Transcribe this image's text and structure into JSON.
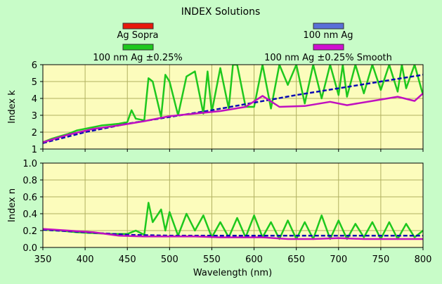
{
  "title": "INDEX Solutions",
  "legend": [
    {
      "label": "Ag Sopra",
      "color": "#e8180c"
    },
    {
      "label": "100 nm Ag",
      "color": "#5a6fd8"
    },
    {
      "label": "100 nm Ag ±0.25%",
      "color": "#1ec81e"
    },
    {
      "label": "100 nm Ag ±0.25% Smooth",
      "color": "#d010d0"
    }
  ],
  "colors": {
    "background": "#c8fcc8",
    "plot_bg": "#fcfcbc",
    "grid": "#b0b060",
    "sopra": "#e8180c",
    "nominal": "#0a0ab4",
    "noisy": "#1ec81e",
    "smooth": "#c010c0"
  },
  "chart_data": [
    {
      "type": "line",
      "title": "INDEX Solutions",
      "xlabel": "",
      "ylabel": "Index k",
      "xlim": [
        350,
        800
      ],
      "ylim": [
        1,
        6
      ],
      "xticks": [
        350,
        400,
        450,
        500,
        550,
        600,
        650,
        700,
        750,
        800
      ],
      "yticks": [
        "1",
        "2",
        "3",
        "4",
        "5",
        "6"
      ],
      "grid": true,
      "series": [
        {
          "name": "100 nm Ag",
          "x": [
            350,
            400,
            450,
            500,
            550,
            600,
            650,
            700,
            750,
            800
          ],
          "y": [
            1.35,
            2.0,
            2.5,
            2.9,
            3.3,
            3.75,
            4.2,
            4.6,
            5.0,
            5.4
          ]
        },
        {
          "name": "100 nm Ag ±0.25%",
          "x": [
            350,
            360,
            370,
            380,
            390,
            400,
            410,
            420,
            430,
            440,
            450,
            455,
            460,
            470,
            475,
            480,
            490,
            495,
            500,
            510,
            520,
            530,
            540,
            545,
            550,
            560,
            570,
            575,
            580,
            590,
            600,
            610,
            620,
            630,
            640,
            650,
            660,
            670,
            680,
            690,
            700,
            705,
            710,
            720,
            730,
            740,
            750,
            760,
            770,
            775,
            780,
            790,
            800
          ],
          "y": [
            1.4,
            1.6,
            1.75,
            1.9,
            2.1,
            2.2,
            2.3,
            2.4,
            2.45,
            2.5,
            2.6,
            3.3,
            2.8,
            2.7,
            5.2,
            5.0,
            2.9,
            5.4,
            5.0,
            3.0,
            5.3,
            5.6,
            3.1,
            5.6,
            3.2,
            5.8,
            3.4,
            6.0,
            6.0,
            3.5,
            3.5,
            6.0,
            3.4,
            6.0,
            4.8,
            6.0,
            3.7,
            6.0,
            4.0,
            6.0,
            4.2,
            6.0,
            4.1,
            6.0,
            4.3,
            6.0,
            4.5,
            6.0,
            4.4,
            6.0,
            4.6,
            6.0,
            4.2
          ]
        },
        {
          "name": "100 nm Ag ±0.25% Smooth",
          "x": [
            350,
            380,
            410,
            440,
            470,
            500,
            530,
            560,
            590,
            610,
            630,
            660,
            690,
            710,
            740,
            770,
            790,
            800
          ],
          "y": [
            1.4,
            1.85,
            2.2,
            2.4,
            2.65,
            2.95,
            3.1,
            3.25,
            3.5,
            4.15,
            3.5,
            3.55,
            3.8,
            3.6,
            3.85,
            4.1,
            3.85,
            4.3
          ]
        }
      ]
    },
    {
      "type": "line",
      "xlabel": "Wavelength (nm)",
      "ylabel": "Index n",
      "xlim": [
        350,
        800
      ],
      "ylim": [
        0,
        1
      ],
      "xticks": [
        350,
        400,
        450,
        500,
        550,
        600,
        650,
        700,
        750,
        800
      ],
      "yticks": [
        "0.0",
        "0.2",
        "0.4",
        "0.6",
        "0.8",
        "1.0"
      ],
      "grid": true,
      "series": [
        {
          "name": "100 nm Ag",
          "x": [
            350,
            400,
            450,
            500,
            550,
            600,
            650,
            700,
            750,
            800
          ],
          "y": [
            0.21,
            0.18,
            0.15,
            0.14,
            0.14,
            0.14,
            0.14,
            0.14,
            0.14,
            0.14
          ]
        },
        {
          "name": "100 nm Ag ±0.25%",
          "x": [
            350,
            370,
            390,
            410,
            430,
            450,
            460,
            470,
            475,
            480,
            490,
            495,
            500,
            510,
            520,
            530,
            540,
            550,
            560,
            570,
            580,
            590,
            600,
            610,
            620,
            630,
            640,
            650,
            660,
            670,
            680,
            690,
            700,
            710,
            720,
            730,
            740,
            750,
            760,
            770,
            780,
            790,
            800
          ],
          "y": [
            0.21,
            0.2,
            0.18,
            0.17,
            0.16,
            0.16,
            0.2,
            0.15,
            0.53,
            0.3,
            0.45,
            0.2,
            0.42,
            0.14,
            0.4,
            0.2,
            0.38,
            0.12,
            0.3,
            0.12,
            0.35,
            0.12,
            0.38,
            0.12,
            0.3,
            0.1,
            0.32,
            0.1,
            0.3,
            0.1,
            0.38,
            0.1,
            0.32,
            0.1,
            0.28,
            0.12,
            0.3,
            0.1,
            0.3,
            0.1,
            0.28,
            0.12,
            0.2
          ]
        },
        {
          "name": "100 nm Ag ±0.25% Smooth",
          "x": [
            350,
            380,
            410,
            440,
            470,
            500,
            530,
            560,
            590,
            610,
            640,
            670,
            700,
            730,
            760,
            790,
            800
          ],
          "y": [
            0.22,
            0.2,
            0.18,
            0.14,
            0.13,
            0.13,
            0.13,
            0.12,
            0.12,
            0.12,
            0.1,
            0.1,
            0.11,
            0.1,
            0.1,
            0.1,
            0.1
          ]
        }
      ]
    }
  ]
}
